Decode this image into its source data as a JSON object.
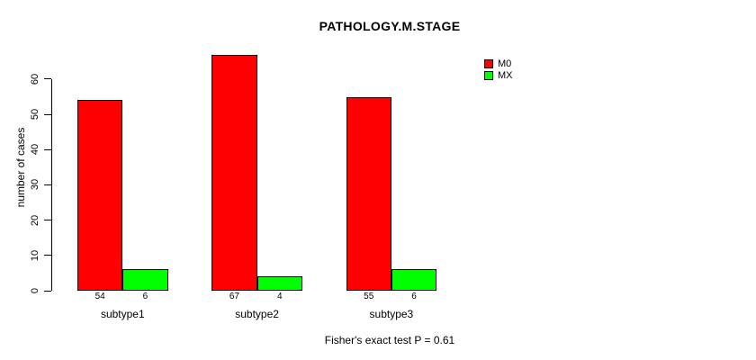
{
  "chart_data": {
    "type": "bar",
    "title": "PATHOLOGY.M.STAGE",
    "xlabel": "",
    "ylabel": "number of cases",
    "categories": [
      "subtype1",
      "subtype2",
      "subtype3"
    ],
    "series": [
      {
        "name": "M0",
        "color": "#ff0000",
        "values": [
          54,
          67,
          55
        ]
      },
      {
        "name": "MX",
        "color": "#00ff00",
        "values": [
          6,
          4,
          6
        ]
      }
    ],
    "bar_value_labels": [
      [
        "54",
        "67",
        "55"
      ],
      [
        "6",
        "4",
        "6"
      ]
    ],
    "yticks": [
      0,
      10,
      20,
      30,
      40,
      50,
      60
    ],
    "ylim": [
      0,
      67
    ],
    "grid": false,
    "legend_position": "top-right",
    "note": "Fisher's exact test P = 0.61"
  }
}
